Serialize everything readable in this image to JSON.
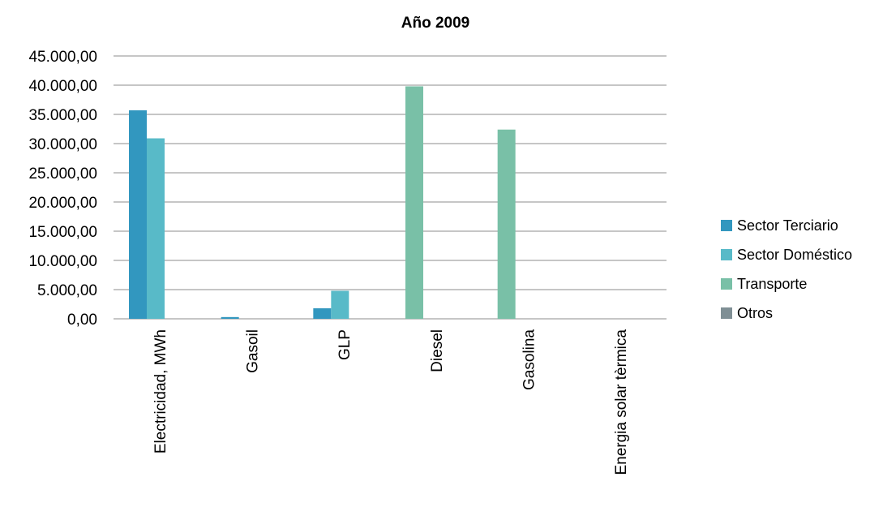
{
  "chart_data": {
    "type": "bar",
    "title": "Año 2009",
    "xlabel": "",
    "ylabel": "",
    "categories": [
      "Electricidad, MWh",
      "Gasoil",
      "GLP",
      "Diesel",
      "Gasolina",
      "Energia solar tèrmica"
    ],
    "series": [
      {
        "name": "Sector Terciario",
        "color": "#3297BF",
        "values": [
          35700,
          300,
          1800,
          0,
          0,
          0
        ]
      },
      {
        "name": "Sector Doméstico",
        "color": "#58BAC8",
        "values": [
          30900,
          0,
          4800,
          0,
          0,
          0
        ]
      },
      {
        "name": "Transporte",
        "color": "#79C0A7",
        "values": [
          0,
          0,
          0,
          39800,
          32400,
          0
        ]
      },
      {
        "name": "Otros",
        "color": "#7F8F95",
        "values": [
          0,
          0,
          0,
          0,
          0,
          0
        ]
      }
    ],
    "ylim": [
      0,
      45000
    ],
    "yticks": [
      "0,00",
      "5.000,00",
      "10.000,00",
      "15.000,00",
      "20.000,00",
      "25.000,00",
      "30.000,00",
      "35.000,00",
      "40.000,00",
      "45.000,00"
    ],
    "grid": true,
    "legend_position": "right"
  }
}
